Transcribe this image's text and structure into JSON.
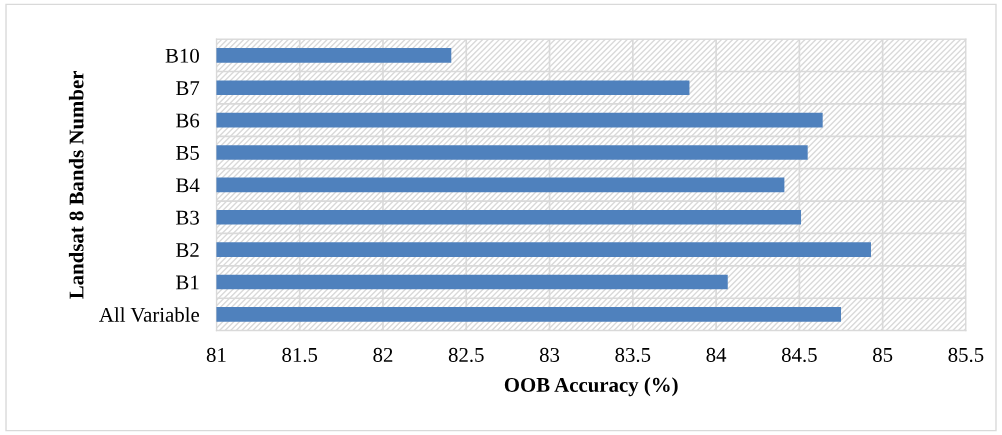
{
  "chart_data": {
    "type": "bar",
    "orientation": "horizontal",
    "xlabel": "OOB Accuracy (%)",
    "ylabel": "Landsat 8 Bands Number",
    "categories": [
      "B10",
      "B7",
      "B6",
      "B5",
      "B4",
      "B3",
      "B2",
      "B1",
      "All Variable"
    ],
    "values": [
      82.41,
      83.84,
      84.64,
      84.55,
      84.41,
      84.51,
      84.93,
      84.07,
      84.75
    ],
    "color": "#4f81bd",
    "xlim": [
      81,
      85.5
    ],
    "xticks": [
      81,
      81.5,
      82,
      82.5,
      83,
      83.5,
      84,
      84.5,
      85,
      85.5
    ],
    "grid": true
  }
}
